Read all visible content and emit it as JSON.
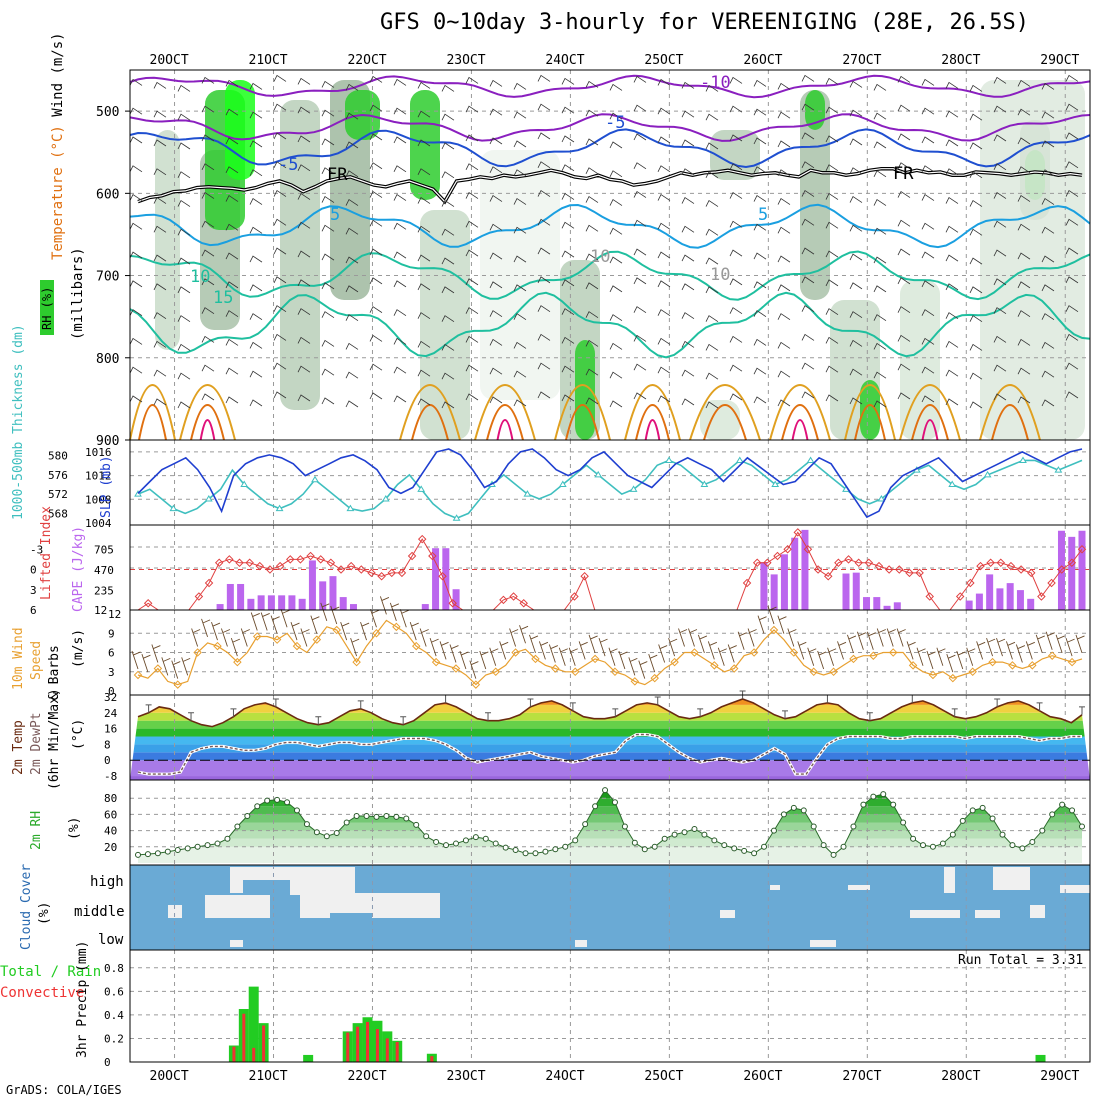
{
  "title": "GFS 0~10day 3-hourly for VEREENIGING (28E, 26.5S)",
  "footer": "GrADS: COLA/IGES",
  "colors": {
    "grid": "#9a9a9a",
    "purple_iso": "#8a1fbf",
    "blue_iso": "#1f4fd0",
    "freezing": "#000000",
    "light_blue_iso": "#1a9fe0",
    "teal_iso": "#1fbf9f",
    "orange_iso": "#e0a020",
    "dark_orange_iso": "#e07010",
    "magenta_iso": "#e0107a",
    "rh_dark": "#8fa88f",
    "rh_green": "#2ecc2e",
    "rh_bright": "#1aff1a",
    "slp": "#1f3fd0",
    "thickness": "#3fbfbf",
    "lifted": "#e04040",
    "cape": "#bb66ee",
    "wind_speed": "#e8a030",
    "barb": "#6a4a2a",
    "temp_line": "#6a2a10",
    "dewpt_line": "#7a5a5a",
    "rh2m": "#2aaa2a",
    "cloud": "#6aaad5",
    "cloud_gap": "#f0f0f0",
    "precip_total": "#22cc22",
    "precip_conv": "#ee3333"
  },
  "time_labels": [
    "20OCT",
    "21OCT",
    "22OCT",
    "23OCT",
    "24OCT",
    "25OCT",
    "26OCT",
    "27OCT",
    "28OCT",
    "29OCT"
  ],
  "chart_data": [
    {
      "id": "upper_air",
      "type": "heatmap",
      "ylabel_parts": [
        "RH (%)",
        "Temperature (°C)",
        "Wind (m/s)",
        "(millibars)"
      ],
      "y_ticks": [
        "500",
        "600",
        "700",
        "800",
        "900"
      ],
      "ylim": [
        900,
        450
      ],
      "y_reversed": true,
      "contour_labels": [
        "-10",
        "-5",
        "-5",
        "FR",
        "FR",
        "5",
        "5",
        "10",
        "10",
        "10",
        "15"
      ],
      "freezing_level_mb": [
        610,
        605,
        603,
        598,
        597,
        593,
        592,
        593,
        594,
        596,
        593,
        588,
        585,
        590,
        598,
        592,
        585,
        582,
        580,
        585,
        590,
        592,
        588,
        585,
        590,
        595,
        610,
        585,
        583,
        580,
        582,
        578,
        580,
        578,
        575,
        572,
        575,
        580,
        582,
        578,
        583,
        585,
        590,
        588,
        585,
        580,
        575,
        578,
        575,
        574,
        572,
        575,
        578,
        576,
        575,
        578,
        580,
        572,
        575,
        575,
        578,
        576,
        572,
        570,
        570,
        575,
        572,
        575,
        574,
        578,
        578,
        574,
        575,
        576,
        578,
        576,
        574,
        575,
        578,
        576,
        578
      ]
    },
    {
      "id": "slp_thickness",
      "type": "line",
      "ylabel_left": "1000-500mb Thickness (dm)",
      "ylabel_right": "SLP (mb)",
      "thickness_ticks": [
        "580",
        "576",
        "572",
        "568"
      ],
      "slp_ticks": [
        "1016",
        "1012",
        "1008",
        "1004"
      ],
      "series": [
        {
          "name": "SLP (mb)",
          "ylim": [
            1004,
            1017
          ],
          "values": [
            1009,
            1011,
            1013,
            1014,
            1015,
            1013,
            1010,
            1006,
            1012,
            1014,
            1015,
            1015.5,
            1015,
            1014,
            1012,
            1013,
            1014,
            1015,
            1015.5,
            1014.5,
            1013,
            1010,
            1009,
            1010,
            1013,
            1016,
            1016.5,
            1015.5,
            1013,
            1010,
            1011,
            1014,
            1016,
            1016.5,
            1015,
            1013,
            1012,
            1013,
            1015,
            1016,
            1014,
            1012,
            1011,
            1010,
            1012,
            1014,
            1015,
            1014,
            1013,
            1011,
            1013,
            1015,
            1013.5,
            1012,
            1010.5,
            1011,
            1013,
            1015,
            1014,
            1011,
            1008,
            1005,
            1006,
            1010,
            1012,
            1013,
            1014,
            1015,
            1013,
            1011,
            1012,
            1013,
            1014,
            1015,
            1016,
            1015,
            1014,
            1015,
            1016,
            1016.5
          ]
        },
        {
          "name": "Thickness (dm)",
          "ylim": [
            566,
            582
          ],
          "values": [
            572,
            573,
            571,
            569,
            568,
            569,
            571,
            573,
            577,
            574,
            572,
            570,
            569,
            570,
            572,
            575,
            573,
            571,
            569,
            568.5,
            569,
            571,
            574,
            576,
            573,
            570,
            568,
            567,
            568,
            571,
            574,
            576,
            574,
            572,
            571,
            572,
            574,
            576,
            578,
            576,
            574,
            572,
            573,
            575,
            578,
            579,
            578,
            576,
            574,
            575,
            577,
            579,
            578,
            576,
            574,
            575,
            577,
            579,
            577,
            575,
            573,
            571,
            570,
            571,
            573,
            575,
            577,
            578,
            576,
            574,
            573,
            574,
            576,
            577,
            578,
            579,
            579,
            578,
            577,
            578,
            579
          ]
        }
      ]
    },
    {
      "id": "instability",
      "type": "bar",
      "ylabel_left": "Lifted Index",
      "ylabel_right": "CAPE (J/kg)",
      "li_ticks": [
        "-3",
        "0",
        "3",
        "6"
      ],
      "cape_ticks": [
        "705",
        "470",
        "235",
        "12"
      ],
      "series": [
        {
          "name": "CAPE (J/kg)",
          "ylim": [
            12,
            940
          ],
          "values": [
            12,
            12,
            12,
            12,
            12,
            12,
            12,
            12,
            80,
            310,
            310,
            140,
            180,
            180,
            180,
            180,
            140,
            580,
            340,
            400,
            160,
            80,
            12,
            12,
            12,
            12,
            12,
            12,
            80,
            720,
            720,
            250,
            12,
            12,
            12,
            12,
            12,
            12,
            12,
            12,
            12,
            12,
            12,
            12,
            12,
            12,
            12,
            12,
            12,
            12,
            12,
            12,
            12,
            12,
            12,
            12,
            12,
            12,
            12,
            12,
            12,
            560,
            420,
            650,
            840,
            930,
            12,
            12,
            12,
            430,
            440,
            160,
            160,
            60,
            100,
            12,
            12,
            12,
            12,
            12,
            12,
            120,
            200,
            420,
            260,
            320,
            240,
            140,
            12,
            12,
            920,
            850,
            920
          ]
        },
        {
          "name": "Lifted Index",
          "ylim": [
            6,
            -6
          ],
          "values": [
            6,
            5,
            6,
            6,
            6,
            6,
            4,
            2,
            -1,
            -1.5,
            -1,
            -1,
            -0.5,
            0,
            -0.5,
            -1.5,
            -1.5,
            -2,
            -1.5,
            -1,
            0,
            -0.5,
            0,
            0.5,
            1,
            0.5,
            0.5,
            -2,
            -4.5,
            -2,
            1,
            5,
            6,
            6,
            6,
            6,
            4.5,
            4,
            5,
            6,
            6,
            6,
            6,
            4,
            1,
            6,
            6,
            6,
            6,
            6,
            6,
            6,
            6,
            6,
            6,
            6,
            6,
            6,
            6,
            6,
            2,
            -1,
            -1,
            -2,
            -3,
            -5.5,
            -3,
            0,
            1,
            -1,
            -1.5,
            -1,
            -1,
            -0.5,
            0,
            0,
            0.5,
            0.5,
            4,
            6,
            6,
            4,
            2,
            -0.5,
            -1,
            -1,
            -0.5,
            0,
            0.5,
            4,
            2,
            0,
            -1,
            -3
          ]
        }
      ],
      "reference_lines": [
        "0 (LI)",
        "470 (CAPE)"
      ]
    },
    {
      "id": "wind10m",
      "type": "line",
      "ylabel": "10m Wind Speed (m/s) & Barbs",
      "ylabel_parts": [
        "10m Wind",
        "Speed",
        "& Barbs",
        "(m/s)"
      ],
      "y_ticks": [
        "12",
        "9",
        "6",
        "3",
        "0"
      ],
      "ylim": [
        0,
        12
      ],
      "series": [
        {
          "name": "10m Wind Speed (m/s)",
          "values": [
            2.5,
            2,
            3.5,
            1.5,
            1,
            1.5,
            6,
            7.5,
            7,
            6,
            4.5,
            6,
            8.5,
            8.5,
            8,
            9,
            7,
            6,
            8,
            10,
            9.5,
            7,
            4.5,
            7,
            9,
            11,
            10,
            9,
            7,
            6,
            4.5,
            4,
            3.5,
            2.5,
            1,
            2.5,
            3,
            4,
            6,
            6.5,
            5,
            4,
            3.5,
            3,
            3,
            4,
            5,
            4.5,
            3,
            2.5,
            1.5,
            1,
            2,
            3.5,
            4.5,
            6,
            6,
            5,
            4,
            3,
            3.5,
            5.5,
            6,
            8,
            9.5,
            8,
            6,
            4,
            3,
            2.5,
            3,
            4,
            5,
            5.5,
            5.5,
            6,
            6,
            6,
            4,
            3,
            2.5,
            3,
            2,
            2.5,
            3,
            4,
            4.5,
            4.5,
            4,
            3.5,
            4,
            5,
            5.5,
            5,
            4.5,
            5
          ]
        }
      ]
    },
    {
      "id": "temperature",
      "type": "area",
      "ylabel_parts": [
        "2m Temp",
        "2m DewPt",
        "(6hr Min/Max)",
        "(°C)"
      ],
      "y_ticks": [
        "32",
        "24",
        "16",
        "8",
        "0",
        "-8"
      ],
      "ylim": [
        -10,
        33
      ],
      "series": [
        {
          "name": "2m Temp",
          "values": [
            22,
            24,
            27,
            26,
            23,
            20,
            18,
            17,
            19,
            22,
            26,
            28,
            29,
            27,
            24,
            21,
            19,
            18,
            19,
            22,
            25,
            26,
            24,
            21,
            19,
            18,
            20,
            24,
            28,
            29,
            27,
            24,
            21,
            20,
            20,
            21,
            23,
            27,
            29,
            30,
            28,
            25,
            22,
            21,
            21,
            22,
            25,
            28,
            29,
            28,
            25,
            22,
            21,
            22,
            24,
            27,
            29,
            31,
            29,
            26,
            23,
            21,
            22,
            25,
            28,
            29,
            28,
            24,
            21,
            20,
            21,
            24,
            27,
            29,
            30,
            28,
            25,
            22,
            21,
            22,
            24,
            27,
            29,
            30,
            28,
            25,
            22,
            21,
            19,
            23
          ]
        },
        {
          "name": "2m DewPt",
          "values": [
            -6,
            -7,
            -7,
            -7,
            -6,
            4,
            6,
            7,
            7,
            6,
            5,
            5,
            6,
            8,
            9,
            9,
            8,
            7,
            8,
            9,
            9,
            8,
            8,
            9,
            10,
            11,
            11,
            11,
            10,
            8,
            5,
            1,
            -1,
            0,
            1,
            2,
            3,
            4,
            2,
            1,
            0,
            -1,
            0,
            2,
            3,
            4,
            10,
            13,
            13,
            12,
            8,
            4,
            1,
            -1,
            0,
            1,
            0,
            -1,
            0,
            3,
            6,
            3,
            -7,
            -7,
            1,
            8,
            11,
            12,
            12,
            12,
            12,
            11,
            11,
            12,
            12,
            12,
            12,
            12,
            11,
            12,
            12,
            12,
            12,
            12,
            11,
            10,
            11,
            11,
            12,
            12
          ]
        }
      ]
    },
    {
      "id": "rh2m",
      "type": "area",
      "ylabel": "2m RH (%)",
      "y_ticks": [
        "80",
        "60",
        "40",
        "20"
      ],
      "ylim": [
        0,
        100
      ],
      "series": [
        {
          "name": "2m RH",
          "values": [
            10,
            11,
            12,
            14,
            16,
            18,
            20,
            22,
            24,
            30,
            45,
            58,
            70,
            77,
            78,
            75,
            65,
            48,
            38,
            33,
            37,
            50,
            58,
            58,
            57,
            58,
            57,
            55,
            47,
            33,
            26,
            22,
            24,
            28,
            32,
            30,
            24,
            19,
            16,
            12,
            12,
            14,
            17,
            20,
            28,
            48,
            70,
            90,
            75,
            45,
            25,
            17,
            20,
            30,
            35,
            38,
            42,
            35,
            28,
            22,
            18,
            15,
            12,
            20,
            40,
            60,
            68,
            65,
            45,
            22,
            10,
            20,
            45,
            72,
            82,
            85,
            72,
            50,
            30,
            22,
            20,
            24,
            35,
            52,
            65,
            68,
            55,
            35,
            22,
            18,
            26,
            40,
            60,
            72,
            65,
            45
          ]
        }
      ]
    },
    {
      "id": "cloud_cover",
      "type": "heatmap",
      "ylabel": "Cloud Cover (%)",
      "levels": [
        "high",
        "middle",
        "low"
      ],
      "note": "solid blue background with grey/white clear gaps"
    },
    {
      "id": "precip",
      "type": "bar",
      "ylabel_parts": [
        "Total / Rain",
        "Convective",
        "3hr Precip (mm)"
      ],
      "y_ticks": [
        "0.8",
        "0.6",
        "0.4",
        "0.2",
        "0"
      ],
      "ylim": [
        0,
        0.9
      ],
      "run_total_label": "Run Total = 3.31",
      "series": [
        {
          "name": "Total / Rain",
          "bars": [
            [
              20.6,
              0.14
            ],
            [
              20.7,
              0.45
            ],
            [
              20.8,
              0.64
            ],
            [
              20.9,
              0.33
            ],
            [
              21.35,
              0.06
            ],
            [
              21.75,
              0.26
            ],
            [
              21.85,
              0.33
            ],
            [
              21.95,
              0.38
            ],
            [
              22.05,
              0.35
            ],
            [
              22.15,
              0.26
            ],
            [
              22.25,
              0.18
            ],
            [
              22.6,
              0.07
            ],
            [
              28.75,
              0.06
            ]
          ]
        },
        {
          "name": "Convective",
          "bars": [
            [
              20.6,
              0.13
            ],
            [
              20.7,
              0.41
            ],
            [
              20.8,
              0.12
            ],
            [
              20.9,
              0.31
            ],
            [
              21.75,
              0.25
            ],
            [
              21.85,
              0.3
            ],
            [
              21.95,
              0.34
            ],
            [
              22.05,
              0.28
            ],
            [
              22.15,
              0.2
            ],
            [
              22.25,
              0.17
            ],
            [
              22.6,
              0.05
            ]
          ]
        }
      ]
    }
  ]
}
